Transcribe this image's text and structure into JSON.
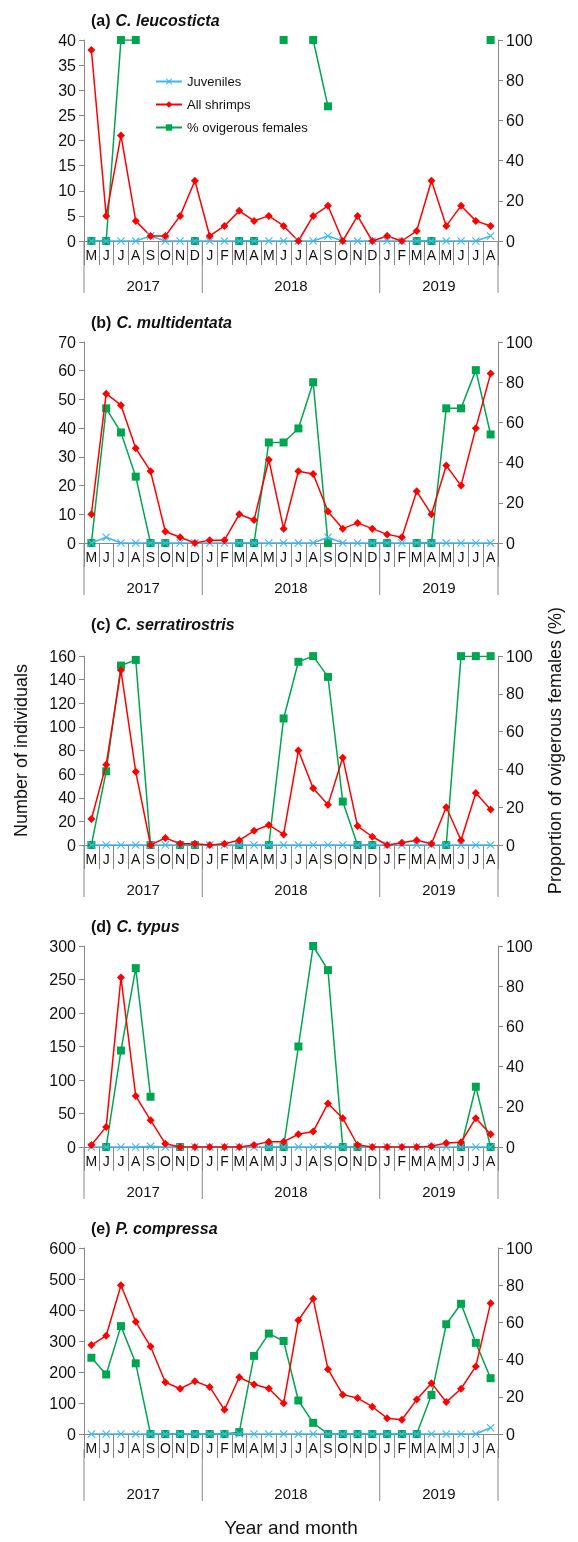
{
  "chart_data": [
    {
      "type": "line",
      "title": "(a) C. leucosticta",
      "legend": "top",
      "categories": [
        "M",
        "J",
        "J",
        "A",
        "S",
        "O",
        "N",
        "D",
        "J",
        "F",
        "M",
        "A",
        "M",
        "J",
        "J",
        "A",
        "S",
        "O",
        "N",
        "D",
        "J",
        "F",
        "M",
        "A",
        "M",
        "J",
        "J",
        "A"
      ],
      "series": [
        {
          "name": "Juveniles",
          "color": "#3fb8f0",
          "marker": "cross",
          "values": [
            0,
            0,
            0,
            0,
            1,
            0,
            0,
            0,
            0,
            0,
            0,
            0,
            0,
            0,
            0,
            0,
            1,
            0,
            0,
            0,
            0,
            0,
            0,
            0,
            0,
            0,
            0,
            1
          ]
        },
        {
          "name": "All shrimps",
          "color": "#ff0000",
          "marker": "diamond",
          "values": [
            38,
            5,
            21,
            4,
            1,
            1,
            5,
            12,
            1,
            3,
            6,
            4,
            5,
            3,
            0,
            5,
            7,
            0,
            5,
            0,
            1,
            0,
            2,
            12,
            3,
            7,
            4,
            3
          ]
        },
        {
          "name": "% ovigerous females",
          "color": "#00a550",
          "marker": "square",
          "axis": "y2",
          "values": [
            0,
            0,
            100,
            100,
            null,
            null,
            null,
            0,
            null,
            null,
            0,
            0,
            null,
            100,
            null,
            100,
            67,
            null,
            null,
            null,
            null,
            null,
            0,
            0,
            null,
            null,
            null,
            100
          ]
        }
      ],
      "ylim": [
        0,
        40
      ],
      "yticks": [
        0,
        5,
        10,
        15,
        20,
        25,
        30,
        35,
        40
      ],
      "y2lim": [
        0,
        100
      ],
      "y2ticks": [
        0,
        20,
        40,
        60,
        80,
        100
      ],
      "annotations": [
        "2017",
        "2018",
        "2019"
      ]
    },
    {
      "type": "line",
      "title": "(b) C. multidentata",
      "categories": [
        "M",
        "J",
        "J",
        "A",
        "S",
        "O",
        "N",
        "D",
        "J",
        "F",
        "M",
        "A",
        "M",
        "J",
        "J",
        "A",
        "S",
        "O",
        "N",
        "D",
        "J",
        "F",
        "M",
        "A",
        "M",
        "J",
        "J",
        "A"
      ],
      "series": [
        {
          "color": "#3fb8f0",
          "marker": "cross",
          "values": [
            0,
            2,
            0,
            0,
            0,
            0,
            0,
            0,
            0,
            0,
            0,
            0,
            0,
            0,
            0,
            0,
            2,
            0,
            0,
            0,
            0,
            0,
            0,
            0,
            0,
            0,
            0,
            0
          ]
        },
        {
          "color": "#ff0000",
          "marker": "diamond",
          "values": [
            10,
            52,
            48,
            33,
            25,
            4,
            2,
            0,
            1,
            1,
            10,
            8,
            29,
            5,
            25,
            24,
            11,
            5,
            7,
            5,
            3,
            2,
            18,
            10,
            27,
            20,
            40,
            59
          ]
        },
        {
          "color": "#00a550",
          "marker": "square",
          "axis": "y2",
          "values": [
            0,
            67,
            55,
            33,
            0,
            0,
            null,
            null,
            null,
            null,
            0,
            0,
            50,
            50,
            57,
            80,
            0,
            null,
            null,
            0,
            0,
            null,
            0,
            0,
            67,
            67,
            86,
            54
          ]
        }
      ],
      "ylim": [
        0,
        70
      ],
      "yticks": [
        0,
        10,
        20,
        30,
        40,
        50,
        60,
        70
      ],
      "y2lim": [
        0,
        100
      ],
      "y2ticks": [
        0,
        20,
        40,
        60,
        80,
        100
      ],
      "annotations": [
        "2017",
        "2018",
        "2019"
      ]
    },
    {
      "type": "line",
      "title": "(c) C. serratirostris",
      "ylabel": "Number of individuals",
      "y2label": "Proportion of ovigerous females (%)",
      "categories": [
        "M",
        "J",
        "J",
        "A",
        "S",
        "O",
        "N",
        "D",
        "J",
        "F",
        "M",
        "A",
        "M",
        "J",
        "J",
        "A",
        "S",
        "O",
        "N",
        "D",
        "J",
        "F",
        "M",
        "A",
        "M",
        "J",
        "J",
        "A"
      ],
      "series": [
        {
          "color": "#3fb8f0",
          "marker": "cross",
          "values": [
            0,
            0,
            0,
            0,
            0,
            0,
            0,
            0,
            0,
            0,
            0,
            0,
            0,
            0,
            0,
            0,
            0,
            0,
            0,
            0,
            0,
            0,
            0,
            0,
            0,
            0,
            0,
            0
          ]
        },
        {
          "color": "#ff0000",
          "marker": "diamond",
          "values": [
            22,
            68,
            148,
            62,
            0,
            6,
            1,
            1,
            0,
            1,
            4,
            12,
            17,
            9,
            80,
            48,
            34,
            74,
            16,
            7,
            0,
            2,
            4,
            1,
            32,
            4,
            44,
            30
          ]
        },
        {
          "color": "#00a550",
          "marker": "square",
          "axis": "y2",
          "values": [
            0,
            39,
            95,
            98,
            0,
            null,
            0,
            0,
            null,
            null,
            0,
            null,
            0,
            67,
            97,
            100,
            89,
            23,
            0,
            0,
            null,
            null,
            null,
            null,
            0,
            100,
            100,
            100
          ]
        }
      ],
      "ylim": [
        0,
        160
      ],
      "yticks": [
        0,
        20,
        40,
        60,
        80,
        100,
        120,
        140,
        160
      ],
      "y2lim": [
        0,
        100
      ],
      "y2ticks": [
        0,
        20,
        40,
        60,
        80,
        100
      ],
      "annotations": [
        "2017",
        "2018",
        "2019"
      ]
    },
    {
      "type": "line",
      "title": "(d) C. typus",
      "categories": [
        "M",
        "J",
        "J",
        "A",
        "S",
        "O",
        "N",
        "D",
        "J",
        "F",
        "M",
        "A",
        "M",
        "J",
        "J",
        "A",
        "S",
        "O",
        "N",
        "D",
        "J",
        "F",
        "M",
        "A",
        "M",
        "J",
        "J",
        "A"
      ],
      "series": [
        {
          "color": "#3fb8f0",
          "marker": "cross",
          "values": [
            0,
            0,
            0,
            0,
            1,
            0,
            0,
            0,
            0,
            0,
            0,
            0,
            0,
            0,
            0,
            0,
            1,
            0,
            0,
            0,
            0,
            0,
            0,
            0,
            0,
            0,
            0,
            0
          ]
        },
        {
          "color": "#ff0000",
          "marker": "diamond",
          "values": [
            3,
            30,
            253,
            76,
            40,
            5,
            0,
            0,
            0,
            0,
            0,
            3,
            8,
            8,
            19,
            23,
            65,
            43,
            3,
            0,
            0,
            0,
            0,
            1,
            6,
            7,
            43,
            19
          ]
        },
        {
          "color": "#00a550",
          "marker": "square",
          "axis": "y2",
          "values": [
            null,
            0,
            48,
            89,
            25,
            null,
            0,
            null,
            null,
            null,
            null,
            null,
            0,
            0,
            50,
            100,
            88,
            0,
            0,
            null,
            null,
            null,
            null,
            null,
            null,
            0,
            30,
            0
          ]
        }
      ],
      "ylim": [
        0,
        300
      ],
      "yticks": [
        0,
        50,
        100,
        150,
        200,
        250,
        300
      ],
      "y2lim": [
        0,
        100
      ],
      "y2ticks": [
        0,
        20,
        40,
        60,
        80,
        100
      ],
      "annotations": [
        "2017",
        "2018",
        "2019"
      ]
    },
    {
      "type": "line",
      "title": "(e) P. compressa",
      "xlabel": "Year and month",
      "categories": [
        "M",
        "J",
        "J",
        "A",
        "S",
        "O",
        "N",
        "D",
        "J",
        "F",
        "M",
        "A",
        "M",
        "J",
        "J",
        "A",
        "S",
        "O",
        "N",
        "D",
        "J",
        "F",
        "M",
        "A",
        "M",
        "J",
        "J",
        "A"
      ],
      "series": [
        {
          "color": "#3fb8f0",
          "marker": "cross",
          "values": [
            0,
            0,
            0,
            0,
            0,
            0,
            0,
            0,
            0,
            0,
            0,
            0,
            0,
            0,
            0,
            0,
            0,
            0,
            0,
            0,
            0,
            0,
            0,
            0,
            0,
            0,
            0,
            20
          ]
        },
        {
          "color": "#ff0000",
          "marker": "diamond",
          "values": [
            287,
            317,
            480,
            362,
            282,
            167,
            146,
            170,
            152,
            78,
            183,
            160,
            147,
            99,
            367,
            436,
            209,
            127,
            116,
            88,
            51,
            46,
            111,
            164,
            103,
            146,
            218,
            422
          ]
        },
        {
          "color": "#00a550",
          "marker": "square",
          "axis": "y2",
          "values": [
            41,
            32,
            58,
            38,
            0,
            0,
            0,
            0,
            0,
            0,
            1,
            42,
            54,
            50,
            18,
            6,
            0,
            0,
            0,
            0,
            0,
            0,
            0,
            21,
            59,
            70,
            49,
            30
          ]
        }
      ],
      "ylim": [
        0,
        600
      ],
      "yticks": [
        0,
        100,
        200,
        300,
        400,
        500,
        600
      ],
      "y2lim": [
        0,
        100
      ],
      "y2ticks": [
        0,
        20,
        40,
        60,
        80,
        100
      ],
      "annotations": [
        "2017",
        "2018",
        "2019"
      ]
    }
  ]
}
